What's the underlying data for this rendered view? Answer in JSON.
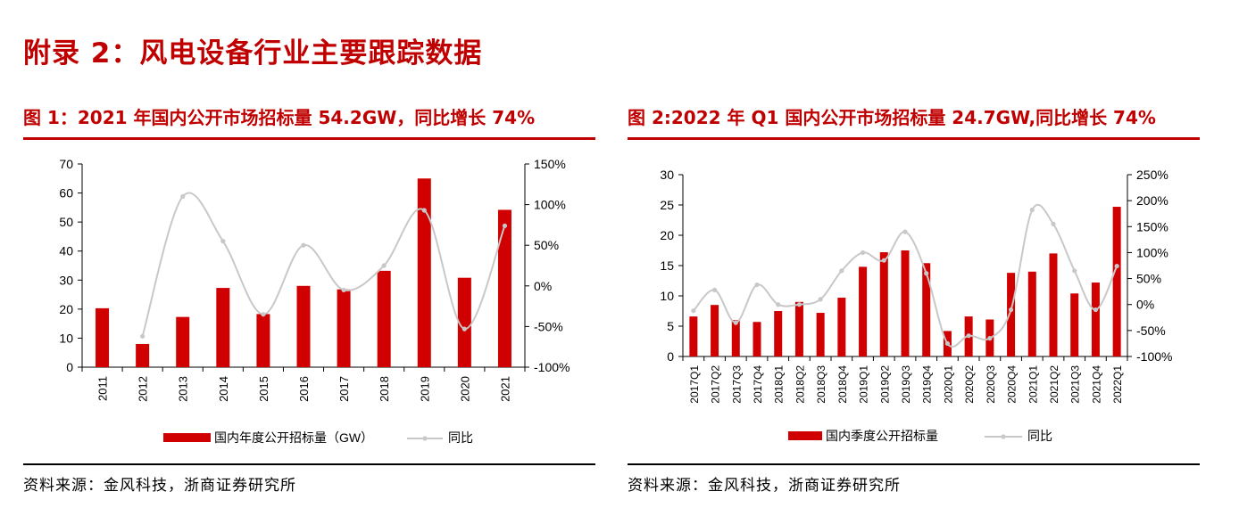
{
  "page": {
    "section_title": "附录 2：风电设备行业主要跟踪数据"
  },
  "colors": {
    "bar": "#d00000",
    "line": "#c8c8c8",
    "title": "#c00000"
  },
  "panels": [
    {
      "figure_title": "图 1：2021 年国内公开市场招标量 54.2GW，同比增长 74%",
      "source": "资料来源：金风科技，浙商证券研究所"
    },
    {
      "figure_title": "图 2:2022 年 Q1 国内公开市场招标量 24.7GW,同比增长 74%",
      "source": "资料来源：金风科技，浙商证券研究所"
    }
  ],
  "chart_data": [
    {
      "type": "bar",
      "categories": [
        "2011",
        "2012",
        "2013",
        "2014",
        "2015",
        "2016",
        "2017",
        "2018",
        "2019",
        "2020",
        "2021"
      ],
      "series": [
        {
          "name": "国内年度公开招标量（GW）",
          "type": "bar",
          "axis": "left",
          "values": [
            20.3,
            8.0,
            17.3,
            27.3,
            18.3,
            28.0,
            26.8,
            33.2,
            65.0,
            30.8,
            54.2
          ]
        },
        {
          "name": "同比",
          "type": "line",
          "axis": "right",
          "values": [
            null,
            -62,
            110,
            55,
            -35,
            50,
            -5,
            25,
            93,
            -53,
            74
          ]
        }
      ],
      "ylim": [
        0,
        70
      ],
      "yticks": [
        "0",
        "10",
        "20",
        "30",
        "40",
        "50",
        "60",
        "70"
      ],
      "y2lim": [
        -100,
        150
      ],
      "y2ticks": [
        "-100%",
        "-50%",
        "0%",
        "50%",
        "100%",
        "150%"
      ],
      "legend": "bottom",
      "grid": false
    },
    {
      "type": "bar",
      "categories": [
        "2017Q1",
        "2017Q2",
        "2017Q3",
        "2017Q4",
        "2018Q1",
        "2018Q2",
        "2018Q3",
        "2018Q4",
        "2019Q1",
        "2019Q2",
        "2019Q3",
        "2019Q4",
        "2020Q1",
        "2020Q2",
        "2020Q3",
        "2020Q4",
        "2021Q1",
        "2021Q2",
        "2021Q3",
        "2021Q4",
        "2022Q1"
      ],
      "series": [
        {
          "name": "国内季度公开招标量",
          "type": "bar",
          "axis": "left",
          "values": [
            6.6,
            8.5,
            6.0,
            5.7,
            7.5,
            9.0,
            7.2,
            9.7,
            14.8,
            17.2,
            17.5,
            15.4,
            4.2,
            6.6,
            6.1,
            13.8,
            14.0,
            17.0,
            10.4,
            12.2,
            24.7
          ]
        },
        {
          "name": "同比",
          "type": "line",
          "axis": "right",
          "values": [
            -12,
            28,
            -35,
            38,
            0,
            0,
            10,
            65,
            100,
            85,
            140,
            60,
            -75,
            -60,
            -65,
            -10,
            182,
            155,
            65,
            -10,
            74
          ]
        }
      ],
      "ylim": [
        0,
        30
      ],
      "yticks": [
        "0",
        "5",
        "10",
        "15",
        "20",
        "25",
        "30"
      ],
      "y2lim": [
        -100,
        250
      ],
      "y2ticks": [
        "-100%",
        "-50%",
        "0%",
        "50%",
        "100%",
        "150%",
        "200%",
        "250%"
      ],
      "legend": "bottom",
      "grid": false
    }
  ]
}
